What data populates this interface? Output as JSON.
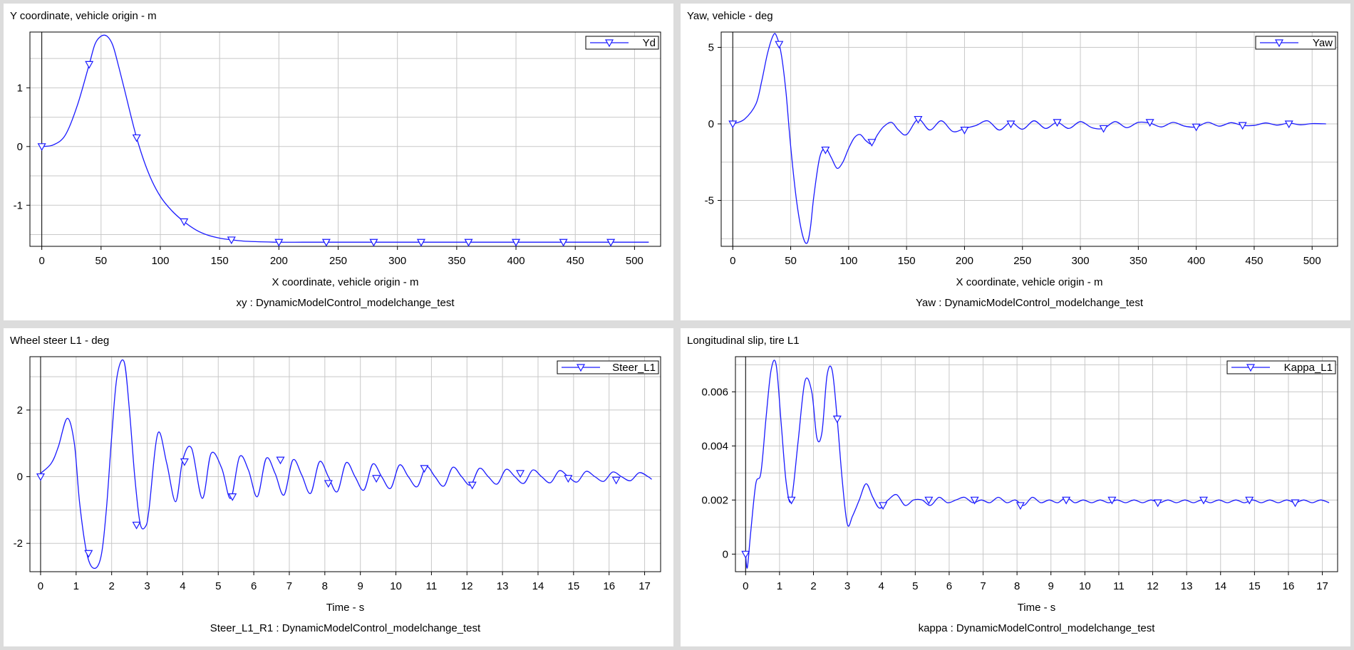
{
  "colors": {
    "series": "#1a1aff",
    "grid": "#c8c8c8",
    "background": "#ffffff",
    "page": "#dcdcdc"
  },
  "chart_data": [
    {
      "type": "line",
      "title": "Y coordinate, vehicle origin - m",
      "xlabel": "X coordinate, vehicle origin - m",
      "footer": "xy : DynamicModelControl_modelchange_test",
      "xlim": [
        -10,
        522
      ],
      "ylim": [
        -1.7,
        1.95
      ],
      "xticks": [
        0,
        50,
        100,
        150,
        200,
        250,
        300,
        350,
        400,
        450,
        500
      ],
      "xtick_labels": [
        "0",
        "50",
        "100",
        "150",
        "200",
        "250",
        "300",
        "350",
        "400",
        "450",
        "500"
      ],
      "yticks": [
        -1,
        0,
        1
      ],
      "ytick_labels": [
        "-1",
        "0",
        "1"
      ],
      "grid": true,
      "legend": "top-right",
      "series": [
        {
          "name": "Yd",
          "marker": "triangle-down",
          "x": [
            0,
            10,
            20,
            30,
            40,
            45,
            50,
            55,
            60,
            65,
            70,
            80,
            90,
            100,
            110,
            120,
            130,
            140,
            150,
            160,
            170,
            180,
            200,
            220,
            240,
            280,
            320,
            360,
            400,
            440,
            480,
            512
          ],
          "y": [
            0,
            0.03,
            0.2,
            0.7,
            1.4,
            1.75,
            1.88,
            1.88,
            1.72,
            1.35,
            0.95,
            0.15,
            -0.45,
            -0.85,
            -1.1,
            -1.28,
            -1.42,
            -1.51,
            -1.56,
            -1.59,
            -1.61,
            -1.62,
            -1.63,
            -1.63,
            -1.63,
            -1.63,
            -1.63,
            -1.63,
            -1.63,
            -1.63,
            -1.63,
            -1.63
          ],
          "markers_x": [
            0,
            40,
            80,
            120,
            160,
            200,
            240,
            280,
            320,
            360,
            400,
            440,
            480
          ],
          "markers_y": [
            0,
            1.4,
            0.15,
            -1.28,
            -1.59,
            -1.63,
            -1.63,
            -1.63,
            -1.63,
            -1.63,
            -1.63,
            -1.63,
            -1.63
          ]
        }
      ]
    },
    {
      "type": "line",
      "title": "Yaw, vehicle - deg",
      "xlabel": "X coordinate, vehicle origin - m",
      "footer": "Yaw : DynamicModelControl_modelchange_test",
      "xlim": [
        -10,
        522
      ],
      "ylim": [
        -8,
        6
      ],
      "xticks": [
        0,
        50,
        100,
        150,
        200,
        250,
        300,
        350,
        400,
        450,
        500
      ],
      "xtick_labels": [
        "0",
        "50",
        "100",
        "150",
        "200",
        "250",
        "300",
        "350",
        "400",
        "450",
        "500"
      ],
      "yticks": [
        -5,
        0,
        5
      ],
      "ytick_labels": [
        "-5",
        "0",
        "5"
      ],
      "grid": true,
      "legend": "top-right",
      "series": [
        {
          "name": "Yaw",
          "marker": "triangle-down",
          "x": [
            0,
            10,
            20,
            25,
            30,
            35,
            38,
            42,
            46,
            50,
            55,
            60,
            64,
            67,
            70,
            75,
            80,
            85,
            90,
            95,
            100,
            105,
            110,
            115,
            120,
            125,
            130,
            137,
            143,
            150,
            160,
            170,
            180,
            190,
            200,
            210,
            220,
            230,
            240,
            250,
            260,
            270,
            280,
            290,
            300,
            310,
            320,
            330,
            340,
            350,
            360,
            370,
            380,
            390,
            400,
            410,
            420,
            430,
            440,
            450,
            460,
            470,
            480,
            490,
            500,
            512
          ],
          "y": [
            0,
            0.3,
            1.3,
            2.8,
            4.6,
            5.8,
            5.7,
            4.5,
            2.0,
            -1.5,
            -5.0,
            -7.2,
            -7.8,
            -6.8,
            -4.7,
            -2.2,
            -1.6,
            -2.2,
            -2.9,
            -2.5,
            -1.6,
            -0.9,
            -0.7,
            -1.1,
            -1.3,
            -0.7,
            -0.2,
            0.1,
            -0.4,
            -0.7,
            0.3,
            -0.4,
            0.2,
            -0.5,
            -0.3,
            -0.1,
            0.2,
            -0.4,
            0.1,
            -0.35,
            0.2,
            -0.3,
            0.1,
            -0.3,
            0.15,
            -0.25,
            -0.3,
            0.15,
            -0.25,
            0.1,
            0.05,
            -0.2,
            0.1,
            -0.15,
            -0.2,
            0.1,
            -0.15,
            0.08,
            -0.1,
            -0.1,
            0.06,
            -0.08,
            0.05,
            -0.06,
            0.02,
            0.0
          ],
          "markers_x": [
            0,
            40,
            80,
            120,
            160,
            200,
            240,
            280,
            320,
            360,
            400,
            440,
            480
          ],
          "markers_y": [
            0,
            5.2,
            -1.7,
            -1.2,
            0.3,
            -0.4,
            0.0,
            0.1,
            -0.3,
            0.1,
            -0.2,
            -0.1,
            0.0
          ]
        }
      ]
    },
    {
      "type": "line",
      "title": "Wheel steer L1 - deg",
      "xlabel": "Time - s",
      "footer": "Steer_L1_R1 : DynamicModelControl_modelchange_test",
      "xlim": [
        -0.3,
        17.45
      ],
      "ylim": [
        -2.85,
        3.6
      ],
      "xticks": [
        0,
        1,
        2,
        3,
        4,
        5,
        6,
        7,
        8,
        9,
        10,
        11,
        12,
        13,
        14,
        15,
        16,
        17
      ],
      "xtick_labels": [
        "0",
        "1",
        "2",
        "3",
        "4",
        "5",
        "6",
        "7",
        "8",
        "9",
        "10",
        "11",
        "12",
        "13",
        "14",
        "15",
        "16",
        "17"
      ],
      "yticks": [
        -2,
        0,
        2
      ],
      "ytick_labels": [
        "-2",
        "0",
        "2"
      ],
      "grid": true,
      "legend": "top-right",
      "series": [
        {
          "name": "Steer_L1",
          "marker": "triangle-down",
          "x": [
            0,
            0.3,
            0.5,
            0.75,
            0.95,
            1.1,
            1.3,
            1.5,
            1.7,
            1.85,
            2.0,
            2.15,
            2.35,
            2.5,
            2.65,
            2.8,
            2.95,
            3.05,
            3.3,
            3.55,
            3.8,
            4.0,
            4.25,
            4.55,
            4.8,
            5.1,
            5.35,
            5.6,
            5.85,
            6.1,
            6.35,
            6.6,
            6.85,
            7.1,
            7.35,
            7.6,
            7.85,
            8.1,
            8.35,
            8.6,
            8.85,
            9.1,
            9.35,
            9.6,
            9.85,
            10.1,
            10.35,
            10.6,
            10.85,
            11.1,
            11.35,
            11.6,
            11.85,
            12.1,
            12.35,
            12.6,
            12.85,
            13.1,
            13.35,
            13.6,
            13.85,
            14.1,
            14.35,
            14.6,
            14.85,
            15.1,
            15.35,
            15.6,
            15.85,
            16.1,
            16.35,
            16.6,
            16.85,
            17.1,
            17.2
          ],
          "y": [
            0.1,
            0.4,
            0.9,
            1.75,
            1.0,
            -0.8,
            -2.3,
            -2.75,
            -2.4,
            -1.0,
            1.2,
            3.0,
            3.45,
            2.0,
            0.0,
            -1.4,
            -1.5,
            -1.0,
            1.3,
            0.4,
            -0.75,
            0.5,
            0.85,
            -0.65,
            0.7,
            0.25,
            -0.65,
            0.6,
            0.2,
            -0.6,
            0.55,
            0.1,
            -0.55,
            0.5,
            0.05,
            -0.5,
            0.45,
            0.0,
            -0.45,
            0.42,
            0.0,
            -0.4,
            0.38,
            0.0,
            -0.35,
            0.35,
            0.0,
            -0.3,
            0.3,
            0.0,
            -0.28,
            0.28,
            0.0,
            -0.25,
            0.25,
            0.0,
            -0.22,
            0.22,
            0.0,
            -0.2,
            0.2,
            0.0,
            -0.18,
            0.18,
            0.0,
            -0.16,
            0.16,
            0.0,
            -0.14,
            0.14,
            0.0,
            -0.12,
            0.12,
            0.0,
            -0.08
          ],
          "markers_x": [
            0,
            1.35,
            2.7,
            4.05,
            5.4,
            6.75,
            8.1,
            9.45,
            10.8,
            12.15,
            13.5,
            14.85,
            16.2
          ],
          "markers_y": [
            0.0,
            -2.3,
            -1.45,
            0.45,
            -0.6,
            0.5,
            -0.2,
            -0.05,
            0.25,
            -0.25,
            0.1,
            -0.05,
            -0.1
          ]
        }
      ]
    },
    {
      "type": "line",
      "title": "Longitudinal slip, tire L1",
      "xlabel": "Time - s",
      "footer": "kappa : DynamicModelControl_modelchange_test",
      "xlim": [
        -0.3,
        17.45
      ],
      "ylim": [
        -0.00065,
        0.0073
      ],
      "xticks": [
        0,
        1,
        2,
        3,
        4,
        5,
        6,
        7,
        8,
        9,
        10,
        11,
        12,
        13,
        14,
        15,
        16,
        17
      ],
      "xtick_labels": [
        "0",
        "1",
        "2",
        "3",
        "4",
        "5",
        "6",
        "7",
        "8",
        "9",
        "10",
        "11",
        "12",
        "13",
        "14",
        "15",
        "16",
        "17"
      ],
      "yticks": [
        0,
        0.002,
        0.004,
        0.006
      ],
      "ytick_labels": [
        "0",
        "0.002",
        "0.004",
        "0.006"
      ],
      "grid": true,
      "legend": "top-right",
      "series": [
        {
          "name": "Kappa_L1",
          "marker": "triangle-down",
          "x": [
            0,
            0.05,
            0.15,
            0.3,
            0.45,
            0.6,
            0.75,
            0.9,
            1.05,
            1.2,
            1.35,
            1.55,
            1.75,
            1.95,
            2.1,
            2.25,
            2.4,
            2.55,
            2.7,
            2.85,
            3.0,
            3.15,
            3.35,
            3.55,
            3.75,
            3.95,
            4.2,
            4.45,
            4.7,
            4.95,
            5.2,
            5.45,
            5.7,
            5.95,
            6.2,
            6.45,
            6.7,
            6.95,
            7.2,
            7.45,
            7.7,
            7.95,
            8.2,
            8.45,
            8.7,
            8.95,
            9.2,
            9.45,
            9.7,
            9.95,
            10.2,
            10.45,
            10.7,
            10.95,
            11.2,
            11.45,
            11.7,
            11.95,
            12.2,
            12.45,
            12.7,
            12.95,
            13.2,
            13.45,
            13.7,
            13.95,
            14.2,
            14.45,
            14.7,
            14.95,
            15.2,
            15.45,
            15.7,
            15.95,
            16.2,
            16.45,
            16.7,
            16.95,
            17.2
          ],
          "y": [
            0.0,
            -0.0005,
            0.0008,
            0.0026,
            0.003,
            0.005,
            0.0068,
            0.007,
            0.0048,
            0.0026,
            0.002,
            0.0042,
            0.0064,
            0.006,
            0.0043,
            0.0045,
            0.0066,
            0.0068,
            0.005,
            0.0027,
            0.0011,
            0.0014,
            0.002,
            0.0026,
            0.0021,
            0.0017,
            0.002,
            0.0022,
            0.0018,
            0.002,
            0.002,
            0.0018,
            0.0021,
            0.0019,
            0.002,
            0.0021,
            0.0019,
            0.002,
            0.0019,
            0.0021,
            0.0019,
            0.002,
            0.0018,
            0.0021,
            0.0019,
            0.002,
            0.0019,
            0.0021,
            0.0019,
            0.002,
            0.0019,
            0.002,
            0.0019,
            0.002,
            0.0019,
            0.002,
            0.0019,
            0.002,
            0.0019,
            0.002,
            0.0019,
            0.002,
            0.0019,
            0.002,
            0.0019,
            0.002,
            0.0019,
            0.002,
            0.0019,
            0.002,
            0.0019,
            0.002,
            0.0019,
            0.002,
            0.0019,
            0.002,
            0.0019,
            0.002,
            0.0019
          ],
          "markers_x": [
            0,
            1.35,
            2.7,
            4.05,
            5.4,
            6.75,
            8.1,
            9.45,
            10.8,
            12.15,
            13.5,
            14.85,
            16.2
          ],
          "markers_y": [
            0.0,
            0.002,
            0.005,
            0.0018,
            0.002,
            0.002,
            0.0018,
            0.002,
            0.002,
            0.0019,
            0.002,
            0.002,
            0.0019
          ]
        }
      ]
    }
  ]
}
